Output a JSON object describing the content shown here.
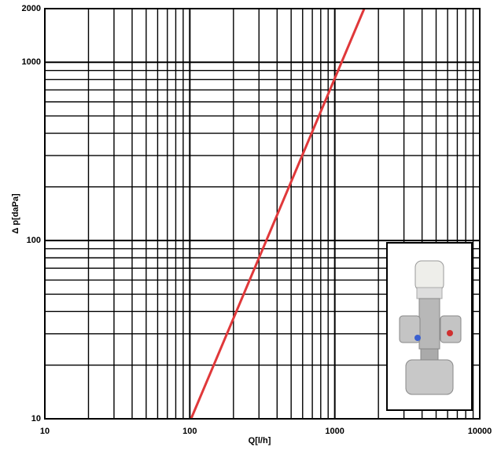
{
  "chart_data": {
    "type": "line",
    "x_label": "Q[l/h]",
    "y_label": "Δ p[daPa]",
    "x": [
      102,
      1596
    ],
    "series": [
      {
        "color": "#e0383a",
        "values": [
          10,
          2000
        ]
      }
    ],
    "xlim": [
      10,
      10000
    ],
    "ylim": [
      10,
      2000
    ],
    "xticks": [
      10,
      100,
      1000,
      10000
    ],
    "yticks": [
      10,
      100,
      1000,
      2000
    ],
    "xscale": "log",
    "yscale": "log",
    "grid": true,
    "minor_grid": true
  }
}
